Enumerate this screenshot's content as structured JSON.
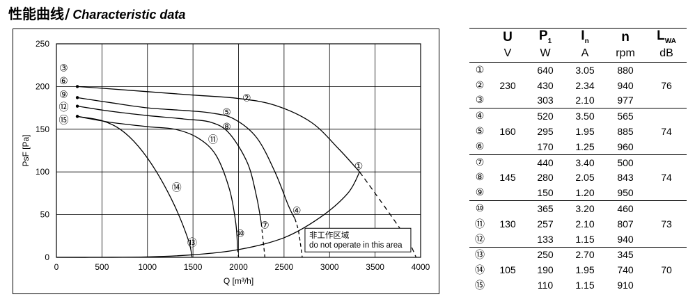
{
  "header": {
    "title_zh": "性能曲线",
    "separator": "/",
    "title_en": "Characteristic data"
  },
  "chart_data": {
    "type": "line",
    "title": "",
    "xlabel": "Q [m³/h]",
    "ylabel": "PsF [Pa]",
    "xlim": [
      0,
      4000
    ],
    "ylim": [
      0,
      250
    ],
    "xticks": [
      0,
      500,
      1000,
      1500,
      2000,
      2500,
      3000,
      3500,
      4000
    ],
    "yticks": [
      0,
      50,
      100,
      150,
      200,
      250
    ],
    "grid": true,
    "series": [
      {
        "name": "②",
        "points": [
          [
            230,
            200
          ],
          [
            500,
            198
          ],
          [
            1000,
            194
          ],
          [
            1500,
            190
          ],
          [
            2000,
            186
          ],
          [
            2400,
            178
          ],
          [
            2800,
            158
          ],
          [
            3100,
            127
          ],
          [
            3330,
            100
          ]
        ]
      },
      {
        "name": "⑤",
        "points": [
          [
            230,
            187
          ],
          [
            600,
            181
          ],
          [
            1000,
            175
          ],
          [
            1400,
            172
          ],
          [
            1700,
            169
          ],
          [
            1950,
            162
          ],
          [
            2200,
            140
          ],
          [
            2400,
            100
          ],
          [
            2550,
            60
          ],
          [
            2620,
            45
          ]
        ]
      },
      {
        "name": "⑧",
        "points": [
          [
            230,
            177
          ],
          [
            600,
            171
          ],
          [
            1000,
            166
          ],
          [
            1400,
            162
          ],
          [
            1700,
            158
          ],
          [
            1900,
            145
          ],
          [
            2100,
            110
          ],
          [
            2200,
            70
          ],
          [
            2250,
            40
          ]
        ]
      },
      {
        "name": "⑪",
        "points": [
          [
            230,
            165
          ],
          [
            600,
            158
          ],
          [
            1000,
            153
          ],
          [
            1300,
            150
          ],
          [
            1550,
            140
          ],
          [
            1750,
            120
          ],
          [
            1900,
            80
          ],
          [
            1970,
            40
          ],
          [
            1990,
            10
          ]
        ]
      },
      {
        "name": "⑭",
        "points": [
          [
            230,
            165
          ],
          [
            500,
            160
          ],
          [
            700,
            150
          ],
          [
            900,
            130
          ],
          [
            1100,
            100
          ],
          [
            1300,
            60
          ],
          [
            1450,
            20
          ],
          [
            1490,
            0
          ]
        ]
      },
      {
        "name": "operating-limit",
        "points": [
          [
            0,
            0
          ],
          [
            500,
            0
          ],
          [
            1000,
            0.5
          ],
          [
            1500,
            3
          ],
          [
            2000,
            9
          ],
          [
            2500,
            23
          ],
          [
            2900,
            47
          ],
          [
            3200,
            75
          ],
          [
            3330,
            100
          ]
        ]
      },
      {
        "name": "do-not-operate-boundary",
        "points": [
          [
            3330,
            100
          ],
          [
            3500,
            75
          ],
          [
            3700,
            45
          ],
          [
            3870,
            18
          ],
          [
            3950,
            0
          ]
        ]
      }
    ],
    "curve_labels": [
      {
        "text": "③",
        "x": 80,
        "y": 222
      },
      {
        "text": "⑥",
        "x": 80,
        "y": 207
      },
      {
        "text": "⑨",
        "x": 80,
        "y": 191
      },
      {
        "text": "⑫",
        "x": 80,
        "y": 176
      },
      {
        "text": "⑮",
        "x": 80,
        "y": 161
      },
      {
        "text": "②",
        "x": 2090,
        "y": 187
      },
      {
        "text": "⑤",
        "x": 1870,
        "y": 170
      },
      {
        "text": "⑧",
        "x": 1870,
        "y": 153
      },
      {
        "text": "⑪",
        "x": 1720,
        "y": 138
      },
      {
        "text": "⑭",
        "x": 1320,
        "y": 82
      },
      {
        "text": "①",
        "x": 3320,
        "y": 107
      },
      {
        "text": "④",
        "x": 2640,
        "y": 55
      },
      {
        "text": "⑦",
        "x": 2290,
        "y": 38
      },
      {
        "text": "⑩",
        "x": 2020,
        "y": 28
      },
      {
        "text": "⑬",
        "x": 1490,
        "y": 17
      }
    ],
    "annotation": {
      "line1": "非工作区域",
      "line2": "do not operate in this area"
    }
  },
  "table": {
    "headers": [
      {
        "main": "U",
        "sub": ""
      },
      {
        "main": "P",
        "sub": "1"
      },
      {
        "main": "I",
        "sub": "n"
      },
      {
        "main": "n",
        "sub": ""
      },
      {
        "main": "L",
        "sub": "WA"
      }
    ],
    "units": [
      "V",
      "W",
      "A",
      "rpm",
      "dB"
    ],
    "groups": [
      {
        "voltage": "230",
        "lwa": "76",
        "rows": [
          {
            "id": "①",
            "p1": "640",
            "in": "3.05",
            "n": "880"
          },
          {
            "id": "②",
            "p1": "430",
            "in": "2.34",
            "n": "940"
          },
          {
            "id": "③",
            "p1": "303",
            "in": "2.10",
            "n": "977"
          }
        ]
      },
      {
        "voltage": "160",
        "lwa": "74",
        "rows": [
          {
            "id": "④",
            "p1": "520",
            "in": "3.50",
            "n": "565"
          },
          {
            "id": "⑤",
            "p1": "295",
            "in": "1.95",
            "n": "885"
          },
          {
            "id": "⑥",
            "p1": "170",
            "in": "1.25",
            "n": "960"
          }
        ]
      },
      {
        "voltage": "145",
        "lwa": "74",
        "rows": [
          {
            "id": "⑦",
            "p1": "440",
            "in": "3.40",
            "n": "500"
          },
          {
            "id": "⑧",
            "p1": "280",
            "in": "2.05",
            "n": "843"
          },
          {
            "id": "⑨",
            "p1": "150",
            "in": "1.20",
            "n": "950"
          }
        ]
      },
      {
        "voltage": "130",
        "lwa": "73",
        "rows": [
          {
            "id": "⑩",
            "p1": "365",
            "in": "3.20",
            "n": "460"
          },
          {
            "id": "⑪",
            "p1": "257",
            "in": "2.10",
            "n": "807"
          },
          {
            "id": "⑫",
            "p1": "133",
            "in": "1.15",
            "n": "940"
          }
        ]
      },
      {
        "voltage": "105",
        "lwa": "70",
        "rows": [
          {
            "id": "⑬",
            "p1": "250",
            "in": "2.70",
            "n": "345"
          },
          {
            "id": "⑭",
            "p1": "190",
            "in": "1.95",
            "n": "740"
          },
          {
            "id": "⑮",
            "p1": "110",
            "in": "1.15",
            "n": "910"
          }
        ]
      }
    ]
  }
}
